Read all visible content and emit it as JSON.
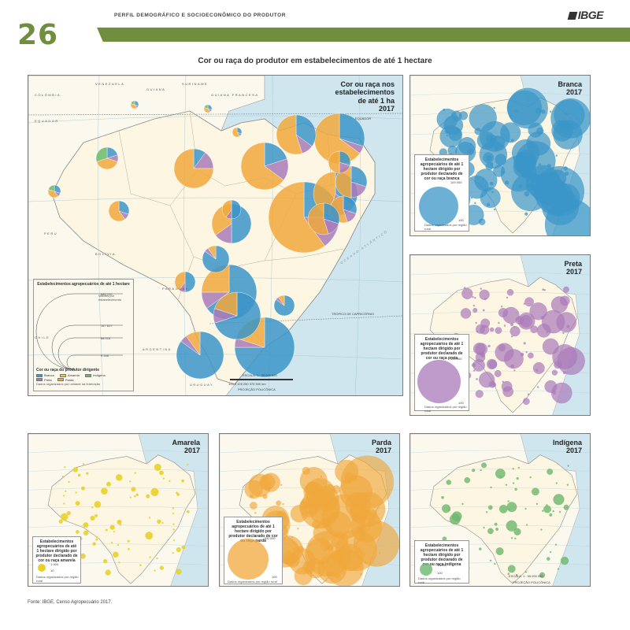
{
  "header": {
    "section_title": "PERFIL DEMOGRÁFICO E SOCIOECONÔMICO DO PRODUTOR",
    "page_number": "26",
    "logo_text": "IBGE"
  },
  "main_title": "Cor ou raça do produtor em estabelecimentos de até 1 hectare",
  "colors": {
    "branca": "#3b95c8",
    "preta": "#a97ab9",
    "amarela": "#e8d22a",
    "parda": "#f0a83c",
    "indigena": "#6bb86b",
    "header_green": "#6f8f3f",
    "ocean": "#cfe6ef",
    "land": "#fbf8ee",
    "brazil_land": "#fdf6e3"
  },
  "main_map": {
    "title_lines": [
      "Cor ou raça nos",
      "estabelecimentos",
      "de até 1 ha",
      "2017"
    ],
    "places": [
      "VENEZUELA",
      "COLÔMBIA",
      "PERU",
      "BOLÍVIA",
      "PARAGUAY",
      "ARGENTINA",
      "URUGUAY",
      "CHILE",
      "EQUADOR",
      "GUIANA",
      "SURINAME",
      "GUIANA FRANCESA"
    ],
    "sea_label": "OCEANO ATLÂNTICO",
    "lines": [
      "EQUADOR",
      "TRÓPICO DE CAPRICÓRNIO"
    ],
    "legend": {
      "title": "Estabelecimentos agropecuários de até 1 hectare",
      "note": "Valores por estabelecimento",
      "values": [
        "685 210",
        "147 817",
        "68 015",
        "9 246"
      ],
      "categories_title": "Cor ou raça do produtor dirigente",
      "categories": [
        {
          "label": "Branca",
          "color": "#3b95c8"
        },
        {
          "label": "Amarela",
          "color": "#e8d22a"
        },
        {
          "label": "Indígena",
          "color": "#6bb86b"
        },
        {
          "label": "Preta",
          "color": "#a97ab9"
        },
        {
          "label": "Parda",
          "color": "#f0a83c"
        }
      ],
      "data_note": "Dados organizados por unidade da federação"
    },
    "scale": {
      "label": "ESCALA: 1 : 25 000 000",
      "ticks": "125 0 125 250 375 500 km",
      "projection": "PROJEÇÃO POLICÔNICA"
    }
  },
  "small_maps": [
    {
      "key": "branca",
      "title_lines": [
        "Branca",
        "2017"
      ],
      "legend_title": "Estabelecimentos agropecuários de até 1 hectare dirigido por produtor declarado de cor ou raça branca",
      "legend_values": [
        "100 000",
        "100"
      ],
      "legend_note": "Dados organizados por região rural"
    },
    {
      "key": "preta",
      "title_lines": [
        "Preta",
        "2017"
      ],
      "legend_title": "Estabelecimentos agropecuários de até 1 hectare dirigido por produtor declarado de cor ou raça preta",
      "legend_values": [
        "100 000",
        "100"
      ],
      "legend_note": "Dados organizados por região rural"
    },
    {
      "key": "amarela",
      "title_lines": [
        "Amarela",
        "2017"
      ],
      "legend_title": "Estabelecimentos agropecuários de até 1 hectare dirigido por produtor declarado de cor ou raça amarela",
      "legend_values": [
        "1 000",
        "10"
      ],
      "legend_note": "Dados organizados por região rural"
    },
    {
      "key": "parda",
      "title_lines": [
        "Parda",
        "2017"
      ],
      "legend_title": "Estabelecimentos agropecuários de até 1 hectare dirigido por produtor declarado de cor ou raça parda",
      "legend_values": [
        "100 000",
        "100"
      ],
      "legend_note": "Dados organizados por região rural"
    },
    {
      "key": "indigena",
      "title_lines": [
        "Indígena",
        "2017"
      ],
      "legend_title": "Estabelecimentos agropecuários de até 1 hectare dirigido por produtor declarado de cor ou raça indígena",
      "legend_values": [
        "10 000",
        "100"
      ],
      "legend_note": "Dados organizados por região rural",
      "scale": "ESCALA: 1 : 55 000 000",
      "projection": "PROJEÇÃO POLICÔNICA"
    }
  ],
  "source": "Fonte: IBGE, Censo Agropecuário 2017."
}
